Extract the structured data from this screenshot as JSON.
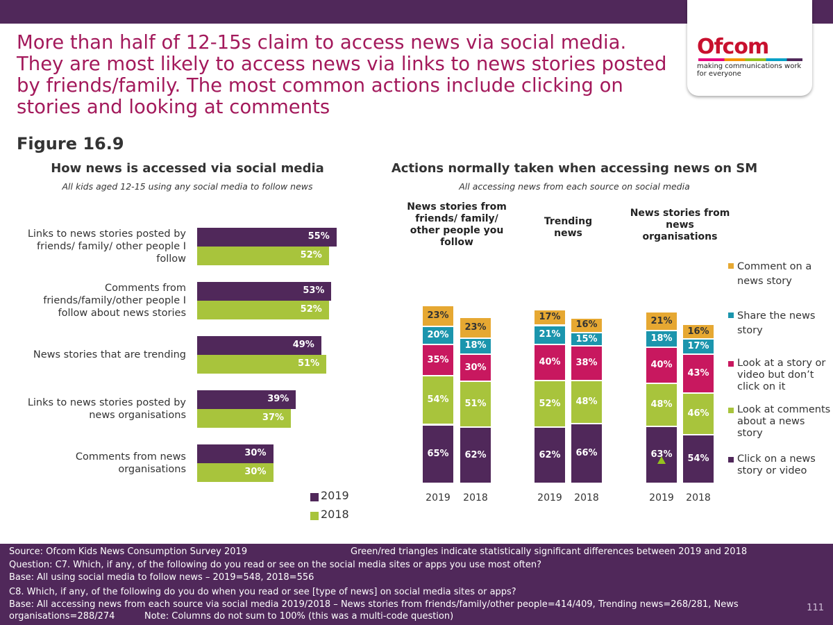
{
  "headline": "More than half of 12-15s claim to access news via social media. They are most likely to access news via links to news stories posted by friends/family. The most common actions include clicking on stories and looking at comments",
  "figure_label": "Figure 16.9",
  "logo": {
    "text": "Ofcom",
    "tagline": "making communications work for everyone"
  },
  "colors": {
    "purple": "#50285a",
    "green": "#a8c43c",
    "pink": "#c8185f",
    "teal": "#1b95ad",
    "amber": "#e6a832",
    "accent": "#a3195b"
  },
  "chart_data": [
    {
      "type": "bar",
      "orientation": "horizontal",
      "title": "How news is accessed via social media",
      "subtitle": "All kids aged 12-15 using any social media to follow news",
      "categories": [
        "Links to news stories posted by friends/ family/ other people I follow",
        "Comments from friends/family/other people I follow about news stories",
        "News stories that are trending",
        "Links to news stories posted by news organisations",
        "Comments from news organisations"
      ],
      "series": [
        {
          "name": "2019",
          "values": [
            55,
            53,
            49,
            39,
            30
          ]
        },
        {
          "name": "2018",
          "values": [
            52,
            52,
            51,
            37,
            30
          ]
        }
      ],
      "value_labels": {
        "2019": [
          "55%",
          "53%",
          "49%",
          "39%",
          "30%"
        ],
        "2018": [
          "52%",
          "52%",
          "51%",
          "37%",
          "30%"
        ]
      },
      "legend": [
        "2019",
        "2018"
      ],
      "legend_position": "bottom-right",
      "xlim": [
        0,
        100
      ]
    },
    {
      "type": "bar",
      "stacked": true,
      "title": "Actions normally taken when accessing news on SM",
      "subtitle": "All accessing news from each source on social media",
      "groups": [
        {
          "title": "News stories from friends/ family/ other people you follow",
          "columns": [
            {
              "year": "2019",
              "values": [
                65,
                54,
                35,
                20,
                23
              ],
              "labels": [
                "65%",
                "54%",
                "35%",
                "20%",
                "23%"
              ]
            },
            {
              "year": "2018",
              "values": [
                62,
                51,
                30,
                18,
                23
              ],
              "labels": [
                "62%",
                "51%",
                "30%",
                "18%",
                "23%"
              ]
            }
          ]
        },
        {
          "title": "Trending news",
          "columns": [
            {
              "year": "2019",
              "values": [
                62,
                52,
                40,
                21,
                17
              ],
              "labels": [
                "62%",
                "52%",
                "40%",
                "21%",
                "17%"
              ]
            },
            {
              "year": "2018",
              "values": [
                66,
                48,
                38,
                15,
                16
              ],
              "labels": [
                "66%",
                "48%",
                "38%",
                "15%",
                "16%"
              ]
            }
          ]
        },
        {
          "title": "News stories from news organisations",
          "columns": [
            {
              "year": "2019",
              "values": [
                63,
                48,
                40,
                18,
                21
              ],
              "labels": [
                "63%",
                "48%",
                "40%",
                "18%",
                "21%"
              ],
              "significant_increase_on_first": true
            },
            {
              "year": "2018",
              "values": [
                54,
                46,
                43,
                17,
                16
              ],
              "labels": [
                "54%",
                "46%",
                "43%",
                "17%",
                "16%"
              ]
            }
          ]
        }
      ],
      "series_order_bottom_to_top": [
        "Click on a news story or video",
        "Look at comments about a news story",
        "Look at a story or video but don't click on it",
        "Share the news story",
        "Comment on a news story"
      ],
      "legend_top_to_bottom": [
        "Comment on a news story",
        "Share the news story",
        "Look at a story or video but don’t click on it",
        "Look at comments about a news story",
        "Click on a news story or video"
      ],
      "legend_position": "right"
    }
  ],
  "footer": {
    "source": "Source: Ofcom Kids News Consumption Survey 2019",
    "sig_note": "Green/red triangles indicate statistically significant differences between 2019 and 2018",
    "question1": "Question: C7. Which, if any, of the following do you read or see on the social media sites or apps you use most often?",
    "base1": "Base: All using social media to follow news – 2019=548, 2018=556",
    "question2": "C8. Which, if any, of the following do you do when you read or see [type of news] on social media sites or apps?",
    "base2a": "Base: All accessing news from each source via social media 2019/2018 – News stories from friends/family/other people=414/409, Trending news=268/281, News",
    "base2b": "organisations=288/274",
    "note": "Note: Columns do not sum to 100% (this was a multi-code question)",
    "page": "111"
  }
}
